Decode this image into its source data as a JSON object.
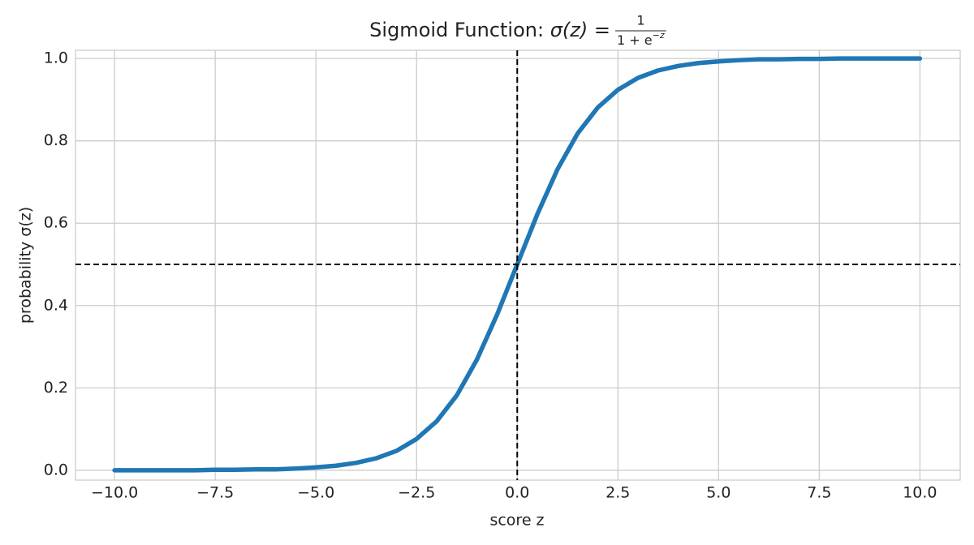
{
  "chart_data": {
    "type": "line",
    "title": "Sigmoid Function:",
    "title_formula": {
      "lhs": "σ(z) =",
      "numerator": "1",
      "denominator": "1 + e",
      "exponent": "−z"
    },
    "x_label": "score z",
    "y_label": "probability σ(z)",
    "x": [
      -10,
      -9.5,
      -9,
      -8.5,
      -8,
      -7.5,
      -7,
      -6.5,
      -6,
      -5.5,
      -5,
      -4.5,
      -4,
      -3.5,
      -3,
      -2.5,
      -2,
      -1.5,
      -1,
      -0.5,
      0,
      0.5,
      1,
      1.5,
      2,
      2.5,
      3,
      3.5,
      4,
      4.5,
      5,
      5.5,
      6,
      6.5,
      7,
      7.5,
      8,
      8.5,
      9,
      9.5,
      10
    ],
    "series": [
      {
        "color": "#1f77b4",
        "values": [
          0.0,
          0.0,
          0.0,
          0.0,
          0.0,
          0.001,
          0.001,
          0.002,
          0.002,
          0.004,
          0.007,
          0.011,
          0.018,
          0.029,
          0.047,
          0.076,
          0.119,
          0.182,
          0.269,
          0.378,
          0.5,
          0.622,
          0.731,
          0.818,
          0.881,
          0.924,
          0.953,
          0.971,
          0.982,
          0.989,
          0.993,
          0.996,
          0.998,
          0.998,
          0.999,
          0.999,
          1.0,
          1.0,
          1.0,
          1.0,
          1.0
        ]
      }
    ],
    "reference_lines": {
      "x": 0,
      "y": 0.5,
      "color": "#000000"
    },
    "xlim": [
      -10.97,
      11.0
    ],
    "ylim": [
      -0.024,
      1.02
    ],
    "xticks": [
      {
        "value": -10,
        "label": "−10.0"
      },
      {
        "value": -7.5,
        "label": "−7.5"
      },
      {
        "value": -5,
        "label": "−5.0"
      },
      {
        "value": -2.5,
        "label": "−2.5"
      },
      {
        "value": 0,
        "label": "0.0"
      },
      {
        "value": 2.5,
        "label": "2.5"
      },
      {
        "value": 5,
        "label": "5.0"
      },
      {
        "value": 7.5,
        "label": "7.5"
      },
      {
        "value": 10,
        "label": "10.0"
      }
    ],
    "yticks": [
      {
        "value": 0,
        "label": "0.0"
      },
      0.2,
      0.4,
      0.6,
      0.8,
      {
        "value": 1,
        "label": "1.0"
      }
    ],
    "grid": true
  }
}
